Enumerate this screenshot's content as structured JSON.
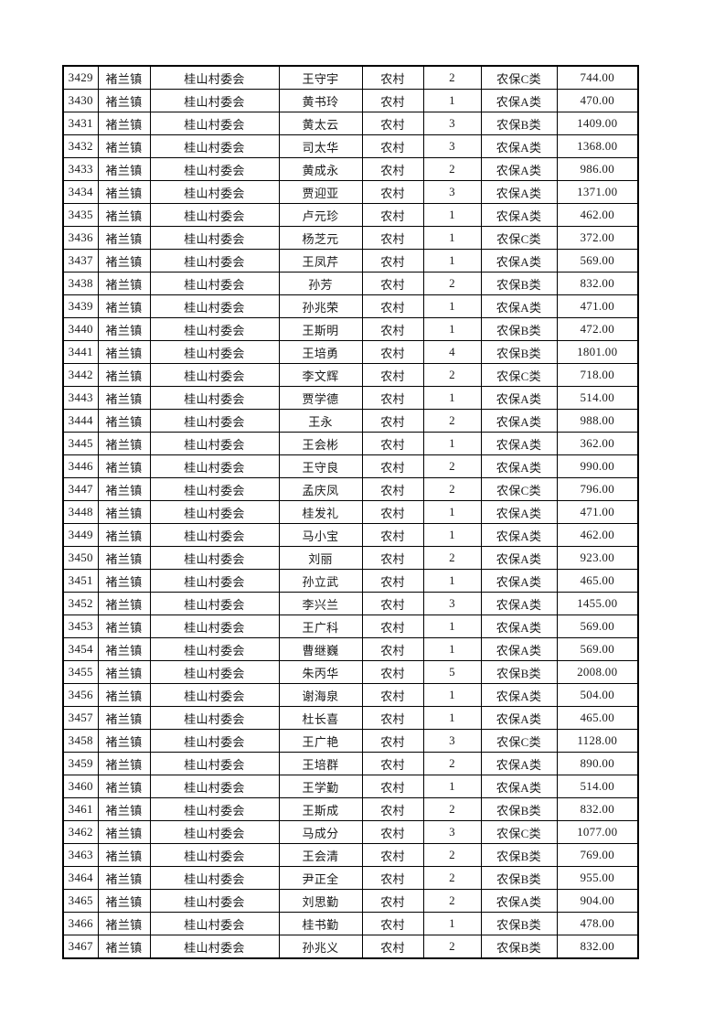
{
  "page": {
    "background_color": "#ffffff",
    "border_color": "#000000",
    "text_color": "#1a1a1a"
  },
  "table": {
    "rows": [
      [
        "3429",
        "褚兰镇",
        "桂山村委会",
        "王守宇",
        "农村",
        "2",
        "农保C类",
        "744.00"
      ],
      [
        "3430",
        "褚兰镇",
        "桂山村委会",
        "黄书玲",
        "农村",
        "1",
        "农保A类",
        "470.00"
      ],
      [
        "3431",
        "褚兰镇",
        "桂山村委会",
        "黄太云",
        "农村",
        "3",
        "农保B类",
        "1409.00"
      ],
      [
        "3432",
        "褚兰镇",
        "桂山村委会",
        "司太华",
        "农村",
        "3",
        "农保A类",
        "1368.00"
      ],
      [
        "3433",
        "褚兰镇",
        "桂山村委会",
        "黄成永",
        "农村",
        "2",
        "农保A类",
        "986.00"
      ],
      [
        "3434",
        "褚兰镇",
        "桂山村委会",
        "贾迎亚",
        "农村",
        "3",
        "农保A类",
        "1371.00"
      ],
      [
        "3435",
        "褚兰镇",
        "桂山村委会",
        "卢元珍",
        "农村",
        "1",
        "农保A类",
        "462.00"
      ],
      [
        "3436",
        "褚兰镇",
        "桂山村委会",
        "杨芝元",
        "农村",
        "1",
        "农保C类",
        "372.00"
      ],
      [
        "3437",
        "褚兰镇",
        "桂山村委会",
        "王凤芹",
        "农村",
        "1",
        "农保A类",
        "569.00"
      ],
      [
        "3438",
        "褚兰镇",
        "桂山村委会",
        "孙芳",
        "农村",
        "2",
        "农保B类",
        "832.00"
      ],
      [
        "3439",
        "褚兰镇",
        "桂山村委会",
        "孙兆荣",
        "农村",
        "1",
        "农保A类",
        "471.00"
      ],
      [
        "3440",
        "褚兰镇",
        "桂山村委会",
        "王斯明",
        "农村",
        "1",
        "农保B类",
        "472.00"
      ],
      [
        "3441",
        "褚兰镇",
        "桂山村委会",
        "王培勇",
        "农村",
        "4",
        "农保B类",
        "1801.00"
      ],
      [
        "3442",
        "褚兰镇",
        "桂山村委会",
        "李文辉",
        "农村",
        "2",
        "农保C类",
        "718.00"
      ],
      [
        "3443",
        "褚兰镇",
        "桂山村委会",
        "贾学德",
        "农村",
        "1",
        "农保A类",
        "514.00"
      ],
      [
        "3444",
        "褚兰镇",
        "桂山村委会",
        "王永",
        "农村",
        "2",
        "农保A类",
        "988.00"
      ],
      [
        "3445",
        "褚兰镇",
        "桂山村委会",
        "王会彬",
        "农村",
        "1",
        "农保A类",
        "362.00"
      ],
      [
        "3446",
        "褚兰镇",
        "桂山村委会",
        "王守良",
        "农村",
        "2",
        "农保A类",
        "990.00"
      ],
      [
        "3447",
        "褚兰镇",
        "桂山村委会",
        "孟庆凤",
        "农村",
        "2",
        "农保C类",
        "796.00"
      ],
      [
        "3448",
        "褚兰镇",
        "桂山村委会",
        "桂发礼",
        "农村",
        "1",
        "农保A类",
        "471.00"
      ],
      [
        "3449",
        "褚兰镇",
        "桂山村委会",
        "马小宝",
        "农村",
        "1",
        "农保A类",
        "462.00"
      ],
      [
        "3450",
        "褚兰镇",
        "桂山村委会",
        "刘丽",
        "农村",
        "2",
        "农保A类",
        "923.00"
      ],
      [
        "3451",
        "褚兰镇",
        "桂山村委会",
        "孙立武",
        "农村",
        "1",
        "农保A类",
        "465.00"
      ],
      [
        "3452",
        "褚兰镇",
        "桂山村委会",
        "李兴兰",
        "农村",
        "3",
        "农保A类",
        "1455.00"
      ],
      [
        "3453",
        "褚兰镇",
        "桂山村委会",
        "王广科",
        "农村",
        "1",
        "农保A类",
        "569.00"
      ],
      [
        "3454",
        "褚兰镇",
        "桂山村委会",
        "曹继巍",
        "农村",
        "1",
        "农保A类",
        "569.00"
      ],
      [
        "3455",
        "褚兰镇",
        "桂山村委会",
        "朱丙华",
        "农村",
        "5",
        "农保B类",
        "2008.00"
      ],
      [
        "3456",
        "褚兰镇",
        "桂山村委会",
        "谢海泉",
        "农村",
        "1",
        "农保A类",
        "504.00"
      ],
      [
        "3457",
        "褚兰镇",
        "桂山村委会",
        "杜长喜",
        "农村",
        "1",
        "农保A类",
        "465.00"
      ],
      [
        "3458",
        "褚兰镇",
        "桂山村委会",
        "王广艳",
        "农村",
        "3",
        "农保C类",
        "1128.00"
      ],
      [
        "3459",
        "褚兰镇",
        "桂山村委会",
        "王培群",
        "农村",
        "2",
        "农保A类",
        "890.00"
      ],
      [
        "3460",
        "褚兰镇",
        "桂山村委会",
        "王学勤",
        "农村",
        "1",
        "农保A类",
        "514.00"
      ],
      [
        "3461",
        "褚兰镇",
        "桂山村委会",
        "王斯成",
        "农村",
        "2",
        "农保B类",
        "832.00"
      ],
      [
        "3462",
        "褚兰镇",
        "桂山村委会",
        "马成分",
        "农村",
        "3",
        "农保C类",
        "1077.00"
      ],
      [
        "3463",
        "褚兰镇",
        "桂山村委会",
        "王会清",
        "农村",
        "2",
        "农保B类",
        "769.00"
      ],
      [
        "3464",
        "褚兰镇",
        "桂山村委会",
        "尹正全",
        "农村",
        "2",
        "农保B类",
        "955.00"
      ],
      [
        "3465",
        "褚兰镇",
        "桂山村委会",
        "刘思勤",
        "农村",
        "2",
        "农保A类",
        "904.00"
      ],
      [
        "3466",
        "褚兰镇",
        "桂山村委会",
        "桂书勤",
        "农村",
        "1",
        "农保B类",
        "478.00"
      ],
      [
        "3467",
        "褚兰镇",
        "桂山村委会",
        "孙兆义",
        "农村",
        "2",
        "农保B类",
        "832.00"
      ]
    ]
  }
}
